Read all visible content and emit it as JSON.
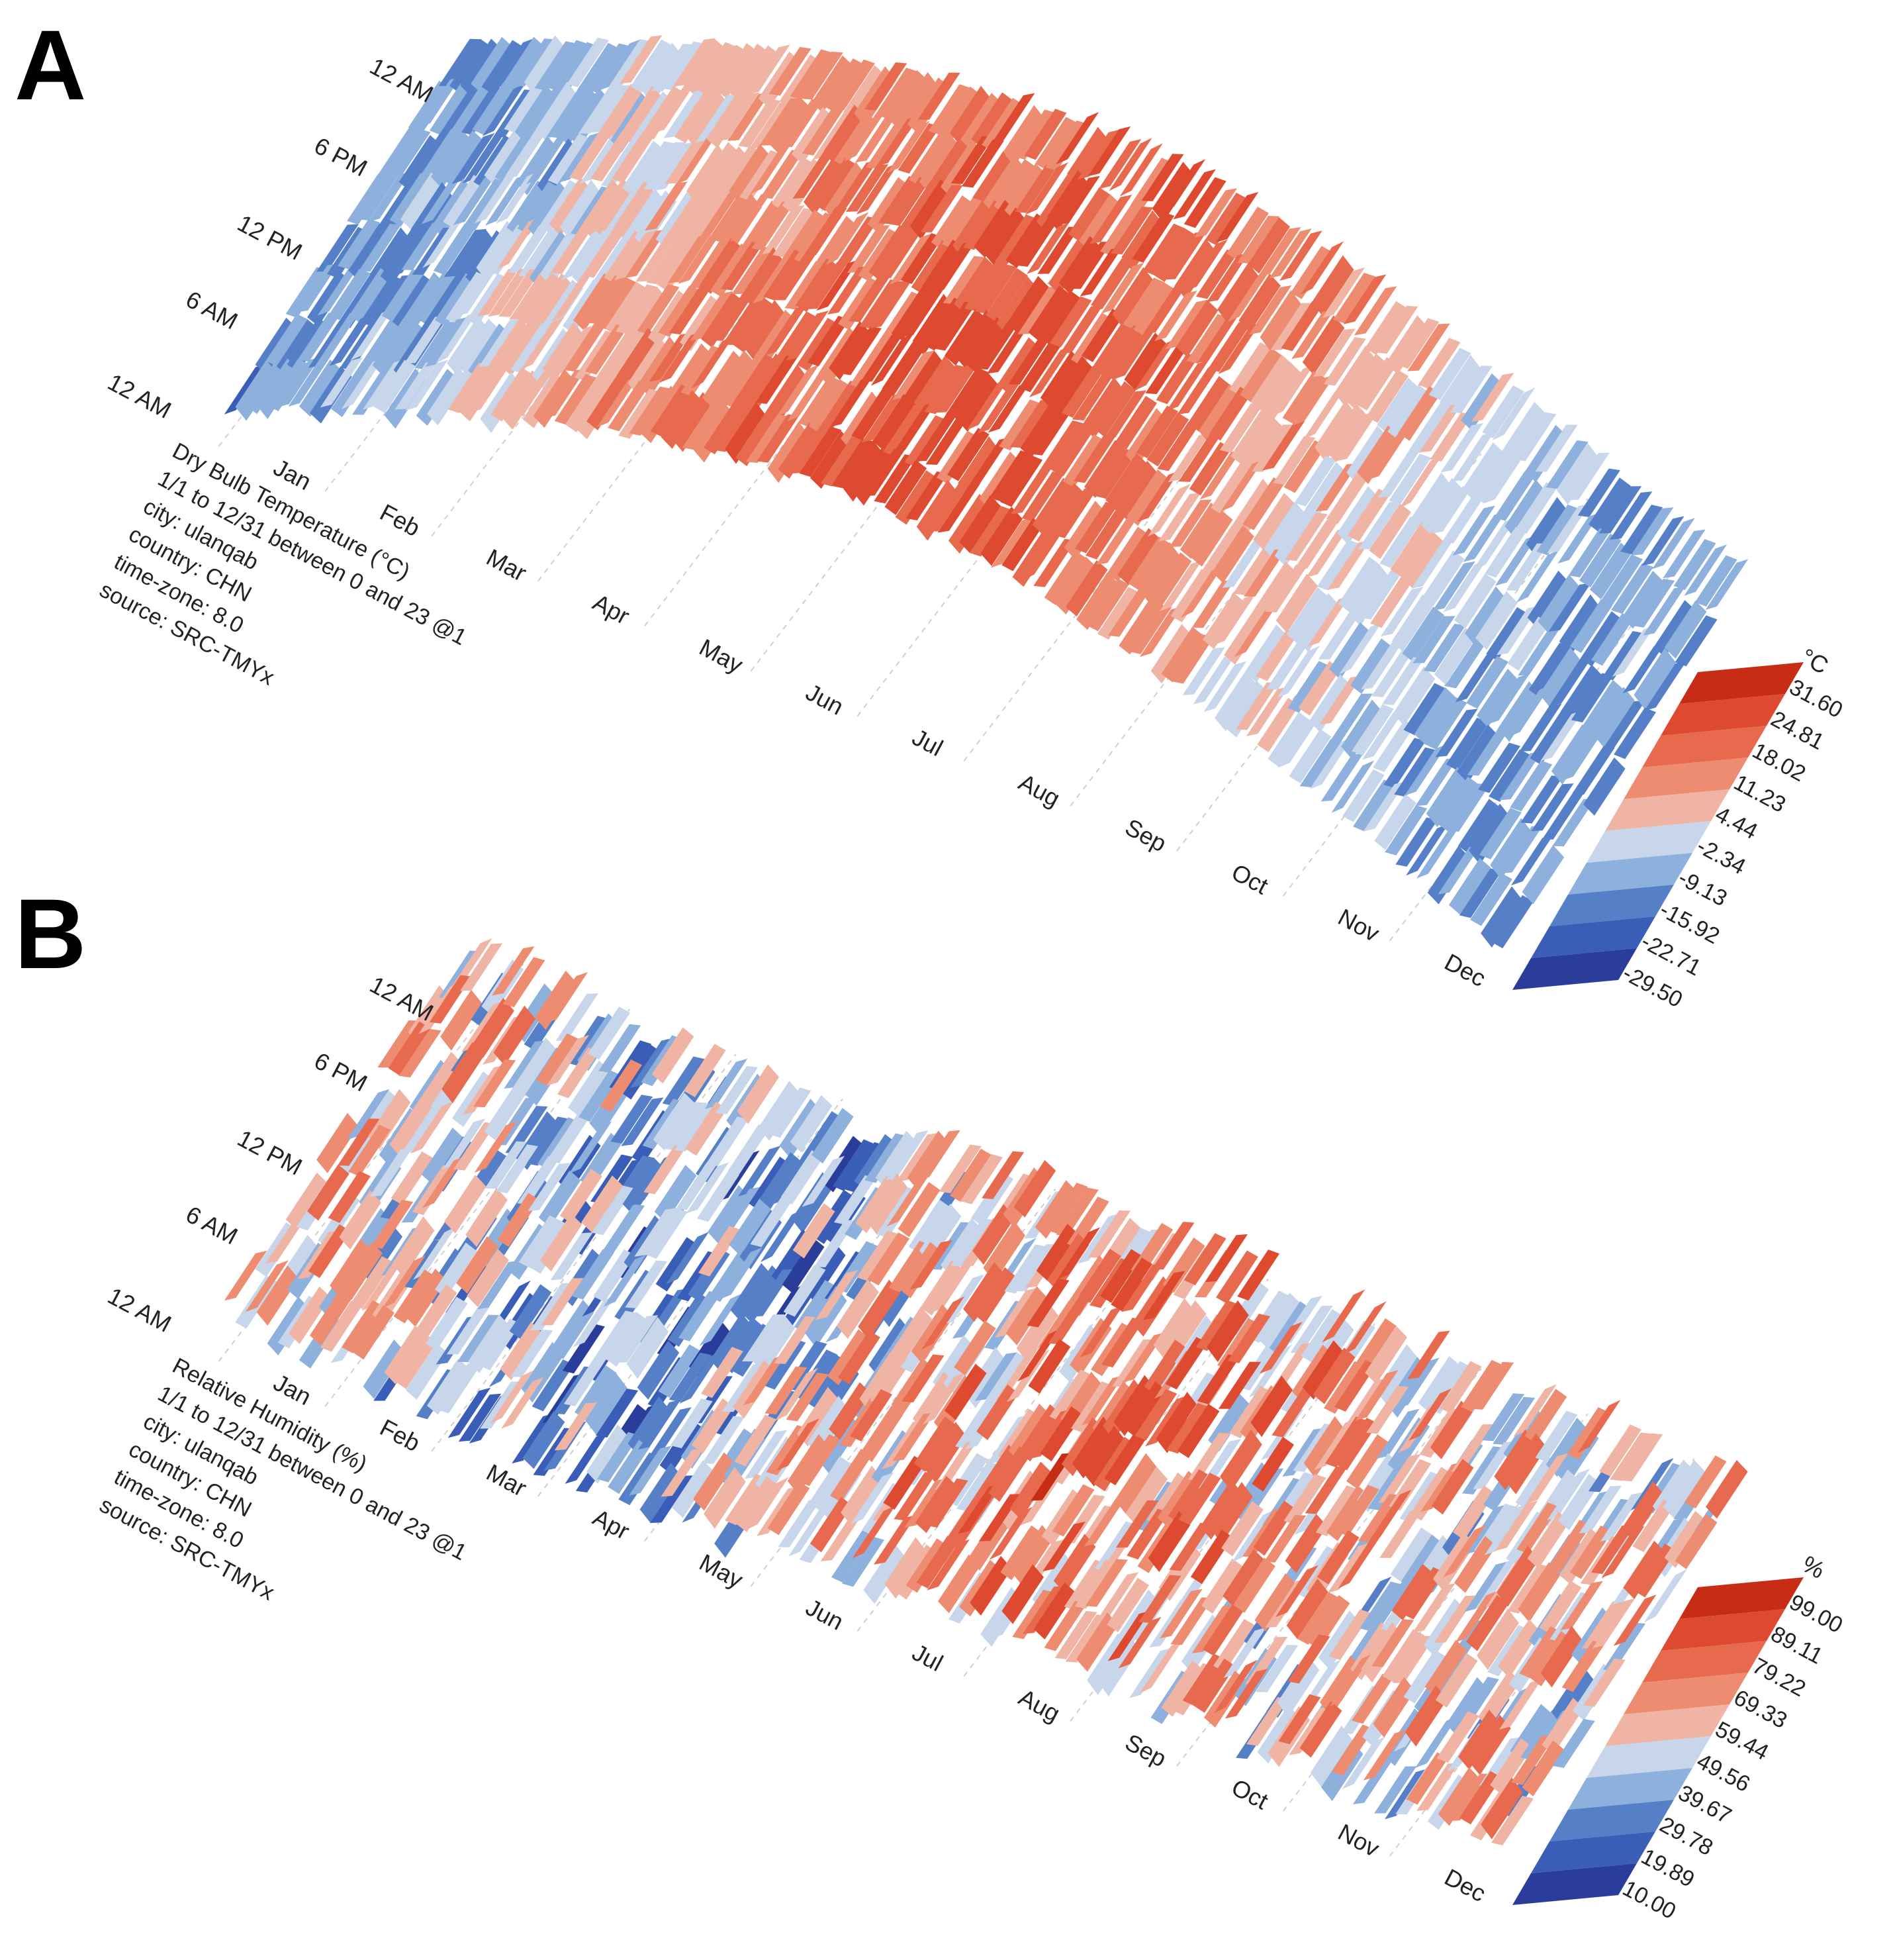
{
  "panels": [
    {
      "letter": "A",
      "hour_labels": [
        "12 AM",
        "6 AM",
        "12 PM",
        "6 PM",
        "12 AM"
      ],
      "month_labels": [
        "Jan",
        "Feb",
        "Mar",
        "Apr",
        "May",
        "Jun",
        "Jul",
        "Aug",
        "Sep",
        "Oct",
        "Nov",
        "Dec"
      ],
      "meta": [
        "Dry Bulb Temperature (°C)",
        "1/1 to 12/31 between 0 and 23 @1",
        "city: ulanqab",
        "country: CHN",
        "time-zone: 8.0",
        "source: SRC-TMYx"
      ],
      "legend": {
        "unit": "°C",
        "ticks": [
          "31.60",
          "24.81",
          "18.02",
          "11.23",
          "4.44",
          "-2.34",
          "-9.13",
          "-15.92",
          "-22.71",
          "-29.50"
        ]
      }
    },
    {
      "letter": "B",
      "hour_labels": [
        "12 AM",
        "6 AM",
        "12 PM",
        "6 PM",
        "12 AM"
      ],
      "month_labels": [
        "Jan",
        "Feb",
        "Mar",
        "Apr",
        "May",
        "Jun",
        "Jul",
        "Aug",
        "Sep",
        "Oct",
        "Nov",
        "Dec"
      ],
      "meta": [
        "Relative Humidity (%)",
        "1/1 to 12/31 between 0 and 23 @1",
        "city: ulanqab",
        "country: CHN",
        "time-zone: 8.0",
        "source: SRC-TMYx"
      ],
      "legend": {
        "unit": "%",
        "ticks": [
          "99.00",
          "89.11",
          "79.22",
          "69.33",
          "59.44",
          "49.56",
          "39.67",
          "29.78",
          "19.89",
          "10.00"
        ]
      }
    }
  ],
  "colors": {
    "scale": [
      "#2b3d9b",
      "#3a5db8",
      "#5580c8",
      "#8db0dd",
      "#c7d6ea",
      "#f0b4a4",
      "#ee8c72",
      "#e86a4e",
      "#dd4a30",
      "#c62d14"
    ]
  },
  "chart_data": [
    {
      "type": "heatmap",
      "title": "Dry Bulb Temperature (°C)",
      "x_categories": [
        "Jan",
        "Feb",
        "Mar",
        "Apr",
        "May",
        "Jun",
        "Jul",
        "Aug",
        "Sep",
        "Oct",
        "Nov",
        "Dec"
      ],
      "y_categories": [
        "12 AM",
        "6 AM",
        "12 PM",
        "6 PM",
        "12 AM"
      ],
      "value_range": [
        -29.5,
        31.6
      ],
      "monthly_mean_estimate": [
        -14,
        -10,
        -2,
        6,
        13,
        18,
        21,
        19,
        13,
        5,
        -4,
        -12
      ],
      "legend_placement": "bottom-right"
    },
    {
      "type": "heatmap",
      "title": "Relative Humidity (%)",
      "x_categories": [
        "Jan",
        "Feb",
        "Mar",
        "Apr",
        "May",
        "Jun",
        "Jul",
        "Aug",
        "Sep",
        "Oct",
        "Nov",
        "Dec"
      ],
      "y_categories": [
        "12 AM",
        "6 AM",
        "12 PM",
        "6 PM",
        "12 AM"
      ],
      "value_range": [
        10,
        99
      ],
      "monthly_mean_estimate": [
        58,
        52,
        40,
        32,
        38,
        55,
        68,
        72,
        66,
        58,
        55,
        56
      ],
      "legend_placement": "bottom-right"
    }
  ]
}
